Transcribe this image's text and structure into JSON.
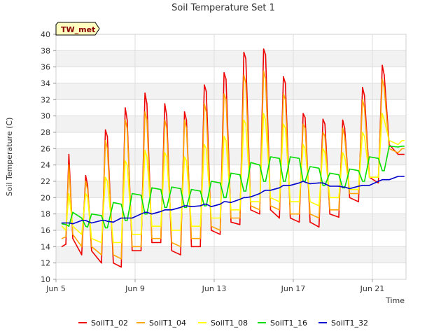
{
  "chart_data": {
    "type": "line",
    "title": "Soil Temperature Set 1",
    "xlabel": "Time",
    "ylabel": "Soil Temperature (C)",
    "site_label": "TW_met",
    "ylim": [
      10,
      40
    ],
    "yticks": [
      10,
      12,
      14,
      16,
      18,
      20,
      22,
      24,
      26,
      28,
      30,
      32,
      34,
      36,
      38,
      40
    ],
    "xlim_days": [
      5,
      22.7
    ],
    "xticks": [
      {
        "day": 5,
        "label": "Jun 5"
      },
      {
        "day": 9,
        "label": "Jun 9"
      },
      {
        "day": 13,
        "label": "Jun 13"
      },
      {
        "day": 17,
        "label": "Jun 17"
      },
      {
        "day": 21,
        "label": "Jun 21"
      }
    ],
    "grid": true,
    "legend_position": "bottom",
    "x_unit": "day of June",
    "x": [
      5.3,
      5.5,
      5.65,
      5.85,
      6.3,
      6.5,
      6.6,
      6.8,
      7.3,
      7.5,
      7.6,
      7.9,
      8.3,
      8.5,
      8.6,
      8.85,
      9.3,
      9.5,
      9.6,
      9.85,
      10.3,
      10.5,
      10.6,
      10.85,
      11.3,
      11.5,
      11.6,
      11.85,
      12.3,
      12.5,
      12.6,
      12.85,
      13.3,
      13.5,
      13.6,
      13.85,
      14.3,
      14.5,
      14.6,
      14.85,
      15.3,
      15.5,
      15.6,
      15.85,
      16.3,
      16.5,
      16.6,
      16.85,
      17.3,
      17.5,
      17.6,
      17.85,
      18.3,
      18.5,
      18.6,
      18.85,
      19.3,
      19.5,
      19.6,
      19.85,
      20.3,
      20.5,
      20.6,
      20.85,
      21.3,
      21.5,
      21.6,
      21.85,
      22.3,
      22.5,
      22.6
    ],
    "series": [
      {
        "name": "SoilT1_02",
        "color": "#ee0000",
        "values": [
          14.0,
          14.3,
          25.3,
          15.0,
          13.0,
          22.7,
          21.5,
          13.5,
          12.0,
          28.3,
          27.5,
          12.0,
          11.5,
          31.0,
          29.5,
          13.5,
          13.5,
          32.8,
          31.5,
          14.5,
          14.5,
          31.5,
          30.0,
          13.5,
          13.0,
          30.5,
          29.5,
          14.0,
          14.0,
          33.8,
          33.0,
          16.0,
          15.5,
          35.3,
          34.5,
          17.0,
          16.7,
          37.8,
          37.0,
          18.5,
          18.0,
          38.2,
          37.5,
          18.5,
          17.5,
          34.8,
          34.0,
          17.5,
          17.0,
          30.3,
          29.8,
          17.0,
          16.4,
          29.6,
          29.0,
          18.0,
          17.6,
          29.5,
          28.5,
          20.0,
          19.5,
          33.5,
          32.5,
          22.5,
          21.8,
          36.2,
          35.0,
          26.5,
          25.3,
          25.3,
          25.3
        ]
      },
      {
        "name": "SoilT1_04",
        "color": "#ffa500",
        "values": [
          15.0,
          15.2,
          24.0,
          15.5,
          14.0,
          22.0,
          21.0,
          14.0,
          13.0,
          27.0,
          26.0,
          13.0,
          12.5,
          29.5,
          28.5,
          14.0,
          14.0,
          30.5,
          29.5,
          15.0,
          15.0,
          29.5,
          28.5,
          14.5,
          14.0,
          29.5,
          28.5,
          15.0,
          15.0,
          31.5,
          30.5,
          16.5,
          16.0,
          32.7,
          32.0,
          17.5,
          17.5,
          35.0,
          34.0,
          19.0,
          18.5,
          35.5,
          34.5,
          19.0,
          18.5,
          32.7,
          32.0,
          18.0,
          18.0,
          29.0,
          28.5,
          18.0,
          17.5,
          28.0,
          27.5,
          18.5,
          18.5,
          28.5,
          27.5,
          20.5,
          20.5,
          32.0,
          31.0,
          22.5,
          22.5,
          34.5,
          33.5,
          26.0,
          25.5,
          26.0,
          26.0
        ]
      },
      {
        "name": "SoilT1_08",
        "color": "#ffff00",
        "values": [
          16.5,
          16.0,
          20.5,
          16.5,
          15.5,
          20.5,
          20.0,
          15.0,
          14.5,
          22.5,
          22.0,
          14.5,
          14.5,
          24.5,
          24.0,
          15.5,
          15.5,
          25.8,
          25.0,
          16.5,
          16.5,
          25.5,
          25.0,
          16.0,
          16.0,
          25.0,
          24.5,
          16.5,
          16.5,
          26.5,
          26.0,
          17.5,
          17.5,
          27.5,
          27.0,
          18.5,
          18.5,
          29.5,
          29.0,
          19.5,
          19.5,
          30.3,
          29.5,
          20.0,
          19.5,
          29.0,
          28.5,
          19.5,
          19.5,
          26.5,
          26.0,
          19.5,
          19.0,
          26.0,
          25.5,
          20.0,
          20.0,
          25.5,
          25.0,
          21.0,
          21.0,
          28.0,
          27.5,
          22.5,
          22.5,
          30.3,
          29.5,
          27.0,
          26.5,
          27.0,
          27.0
        ]
      },
      {
        "name": "SoilT1_16",
        "color": "#00dd00",
        "values": [
          16.8,
          16.7,
          16.5,
          18.2,
          17.5,
          16.5,
          16.4,
          18.0,
          17.8,
          16.3,
          16.3,
          19.4,
          19.2,
          17.2,
          17.2,
          20.5,
          20.3,
          18.0,
          18.0,
          21.2,
          21.0,
          18.8,
          18.8,
          21.3,
          21.1,
          18.8,
          18.8,
          21.0,
          20.8,
          19.0,
          19.0,
          22.0,
          21.8,
          20.0,
          20.0,
          23.0,
          22.8,
          20.8,
          20.8,
          24.3,
          24.0,
          22.0,
          22.0,
          25.0,
          24.8,
          22.0,
          22.0,
          25.0,
          24.8,
          22.0,
          22.0,
          23.8,
          23.6,
          21.5,
          21.5,
          23.0,
          22.8,
          21.2,
          21.2,
          23.5,
          23.3,
          22.0,
          22.0,
          25.0,
          24.8,
          23.3,
          23.3,
          26.3,
          26.2,
          26.3,
          26.3
        ]
      },
      {
        "name": "SoilT1_32",
        "color": "#0000cc",
        "values": [
          16.9,
          16.9,
          16.9,
          16.8,
          17.2,
          17.2,
          17.1,
          16.9,
          17.2,
          17.2,
          17.1,
          17.0,
          17.5,
          17.5,
          17.5,
          17.5,
          18.0,
          18.2,
          18.2,
          18.0,
          18.3,
          18.5,
          18.5,
          18.5,
          18.8,
          19.0,
          19.0,
          18.9,
          19.0,
          19.2,
          19.2,
          18.9,
          19.2,
          19.5,
          19.5,
          19.4,
          19.8,
          20.0,
          20.0,
          20.1,
          20.5,
          20.8,
          20.9,
          20.9,
          21.2,
          21.5,
          21.5,
          21.5,
          21.8,
          22.0,
          21.9,
          21.7,
          21.8,
          21.8,
          21.7,
          21.4,
          21.4,
          21.3,
          21.3,
          21.1,
          21.4,
          21.5,
          21.5,
          21.5,
          22.0,
          22.2,
          22.2,
          22.2,
          22.6,
          22.6,
          22.6
        ]
      }
    ]
  }
}
